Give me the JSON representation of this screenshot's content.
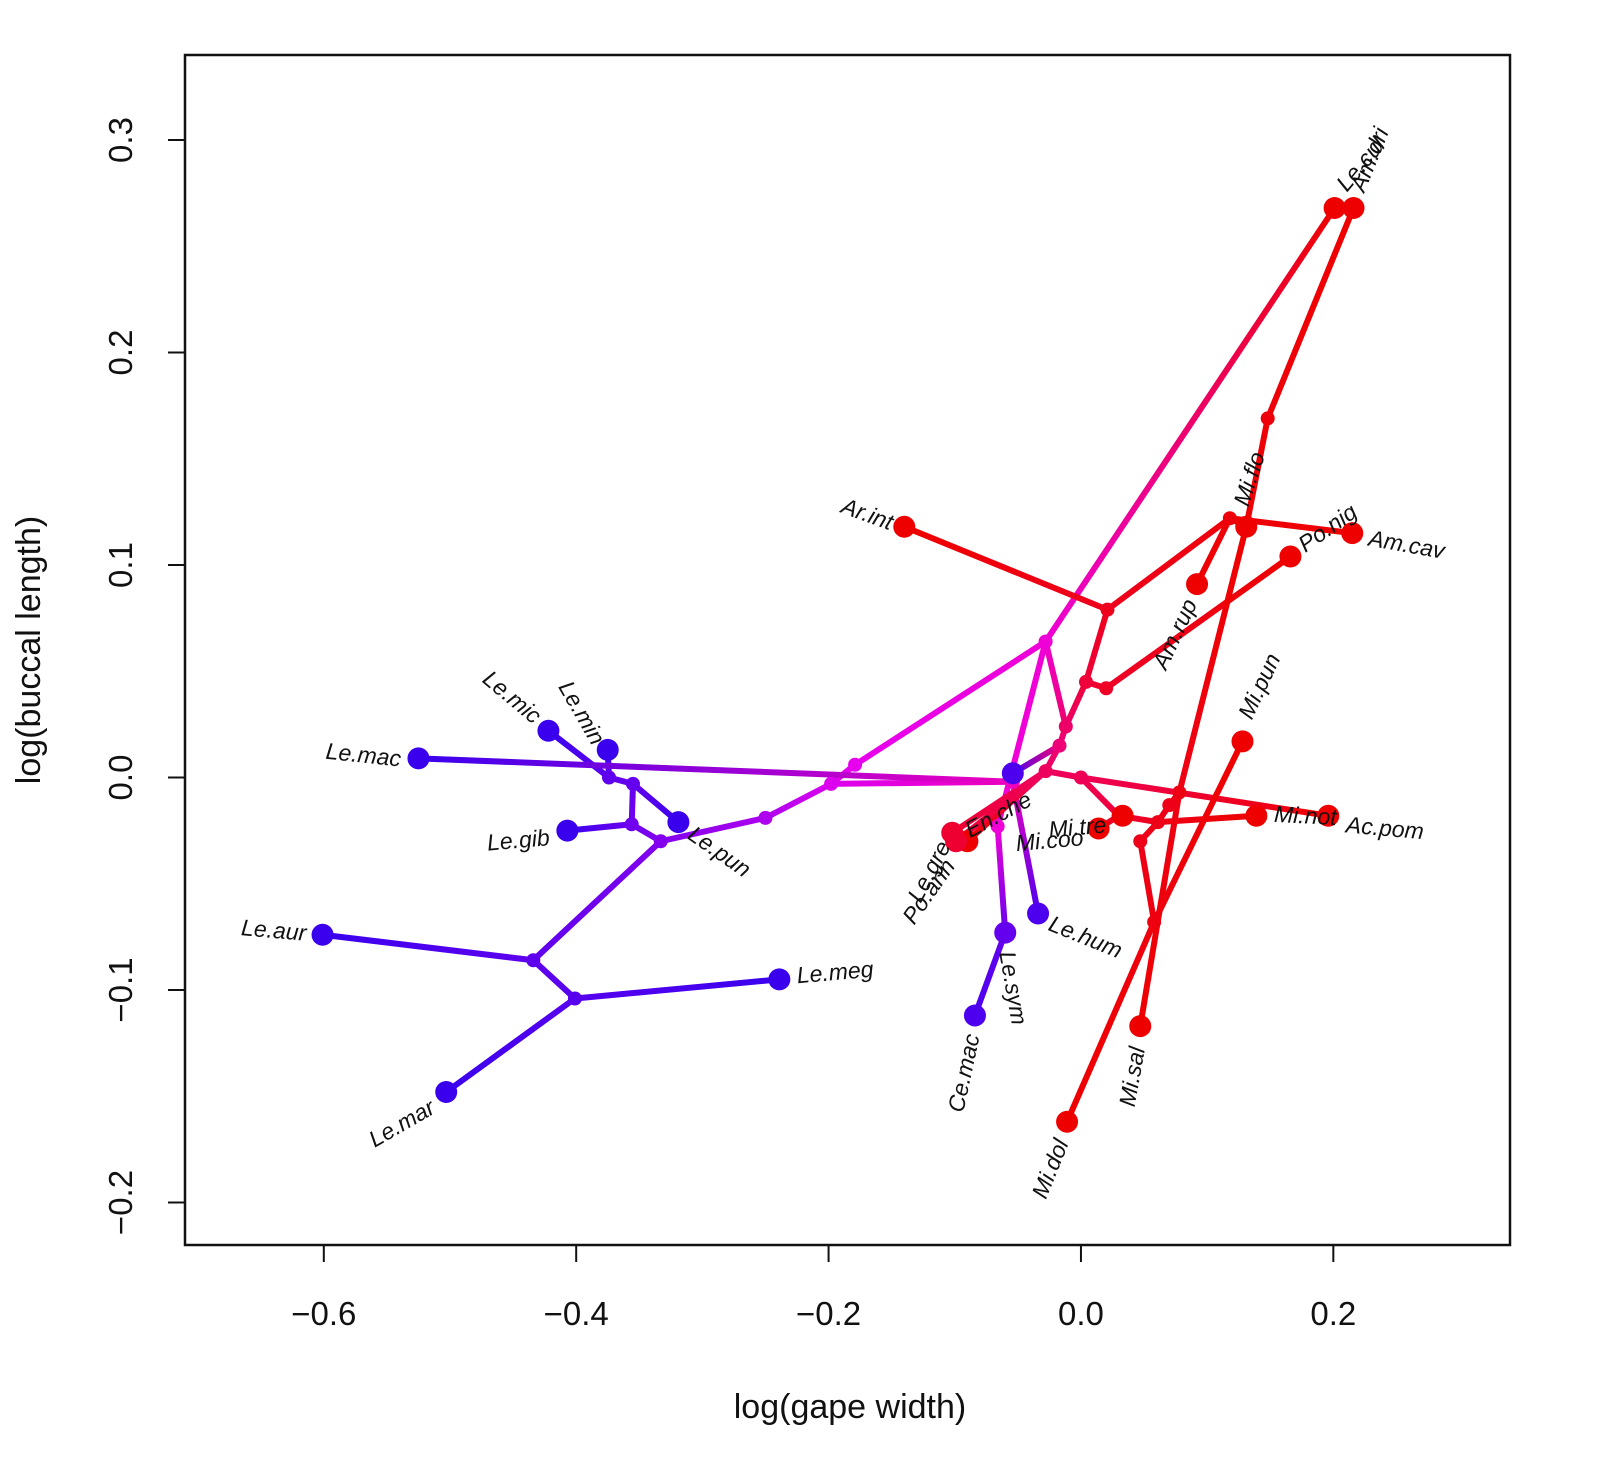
{
  "chart_data": {
    "type": "scatter",
    "subtype": "phylomorphospace",
    "xlabel": "log(gape width)",
    "ylabel": "log(buccal length)",
    "xlim": [
      -0.71,
      0.34
    ],
    "ylim": [
      -0.22,
      0.34
    ],
    "xticks": [
      -0.6,
      -0.4,
      -0.2,
      0.0,
      0.2
    ],
    "yticks": [
      -0.2,
      -0.1,
      0.0,
      0.1,
      0.2,
      0.3
    ],
    "xtick_labels": [
      "−0.6",
      "−0.4",
      "−0.2",
      "0.0",
      "0.2"
    ],
    "ytick_labels": [
      "−0.2",
      "−0.1",
      "0.0",
      "0.1",
      "0.2",
      "0.3"
    ],
    "grid": false,
    "color_scale": {
      "low": "#3a00ee",
      "mid": "#ee00ee",
      "high": "#ee0000"
    },
    "nodes": {
      "root": {
        "x": -0.028,
        "y": 0.064,
        "v": 0.55
      },
      "b1": {
        "x": -0.179,
        "y": 0.006,
        "v": 0.48
      },
      "b2": {
        "x": -0.198,
        "y": -0.003,
        "v": 0.45
      },
      "b3": {
        "x": -0.25,
        "y": -0.019,
        "v": 0.32
      },
      "b4": {
        "x": -0.333,
        "y": -0.03,
        "v": 0.2
      },
      "b5": {
        "x": -0.356,
        "y": -0.022,
        "v": 0.15
      },
      "b6": {
        "x": -0.355,
        "y": -0.003,
        "v": 0.12
      },
      "b7": {
        "x": -0.374,
        "y": 0.0,
        "v": 0.1
      },
      "b8": {
        "x": -0.434,
        "y": -0.086,
        "v": 0.1
      },
      "b9": {
        "x": -0.401,
        "y": -0.104,
        "v": 0.08
      },
      "c1": {
        "x": -0.054,
        "y": -0.002,
        "v": 0.6
      },
      "c2": {
        "x": -0.066,
        "y": -0.023,
        "v": 0.55
      },
      "r1": {
        "x": -0.012,
        "y": 0.024,
        "v": 0.78
      },
      "r2": {
        "x": -0.017,
        "y": 0.015,
        "v": 0.75
      },
      "r3": {
        "x": 0.004,
        "y": 0.045,
        "v": 0.88
      },
      "r4": {
        "x": 0.02,
        "y": 0.042,
        "v": 0.92
      },
      "r5": {
        "x": 0.021,
        "y": 0.079,
        "v": 0.94
      },
      "r6": {
        "x": 0.118,
        "y": 0.122,
        "v": 0.98
      },
      "r7": {
        "x": 0.148,
        "y": 0.169,
        "v": 0.98
      },
      "r8": {
        "x": -0.028,
        "y": 0.003,
        "v": 0.8
      },
      "r9": {
        "x": 0.0,
        "y": 0.0,
        "v": 0.82
      },
      "r10": {
        "x": 0.03,
        "y": -0.018,
        "v": 0.88
      },
      "r11": {
        "x": 0.061,
        "y": -0.021,
        "v": 0.95
      },
      "r12": {
        "x": 0.07,
        "y": -0.013,
        "v": 0.95
      },
      "r13": {
        "x": 0.078,
        "y": -0.007,
        "v": 0.96
      },
      "r14": {
        "x": 0.047,
        "y": -0.03,
        "v": 0.95
      },
      "r15": {
        "x": 0.058,
        "y": -0.068,
        "v": 0.97
      }
    },
    "tips": [
      {
        "name": "Le.mac",
        "x": -0.525,
        "y": 0.009,
        "v": 0.0,
        "lx": -0.539,
        "ly": 0.008,
        "anchor": "end",
        "rot": 6
      },
      {
        "name": "Le.mic",
        "x": -0.422,
        "y": 0.022,
        "v": 0.0,
        "lx": -0.431,
        "ly": 0.027,
        "anchor": "end",
        "rot": 40
      },
      {
        "name": "Le.min",
        "x": -0.375,
        "y": 0.013,
        "v": 0.0,
        "lx": -0.383,
        "ly": 0.016,
        "anchor": "end",
        "rot": 60
      },
      {
        "name": "Le.gib",
        "x": -0.407,
        "y": -0.025,
        "v": 0.0,
        "lx": -0.421,
        "ly": -0.029,
        "anchor": "end",
        "rot": -5
      },
      {
        "name": "Le.pun",
        "x": -0.319,
        "y": -0.021,
        "v": 0.0,
        "lx": -0.31,
        "ly": -0.026,
        "anchor": "start",
        "rot": 35
      },
      {
        "name": "Le.aur",
        "x": -0.601,
        "y": -0.074,
        "v": 0.0,
        "lx": -0.614,
        "ly": -0.074,
        "anchor": "end",
        "rot": 5
      },
      {
        "name": "Le.mar",
        "x": -0.503,
        "y": -0.148,
        "v": 0.0,
        "lx": -0.513,
        "ly": -0.155,
        "anchor": "end",
        "rot": -30
      },
      {
        "name": "Le.meg",
        "x": -0.239,
        "y": -0.095,
        "v": 0.0,
        "lx": -0.225,
        "ly": -0.094,
        "anchor": "start",
        "rot": -5
      },
      {
        "name": "Le.hum",
        "x": -0.034,
        "y": -0.064,
        "v": 0.05,
        "lx": -0.025,
        "ly": -0.069,
        "anchor": "start",
        "rot": 22
      },
      {
        "name": "Le.sym",
        "x": -0.06,
        "y": -0.073,
        "v": 0.12,
        "lx": -0.06,
        "ly": -0.082,
        "anchor": "start",
        "rot": 80
      },
      {
        "name": "Ce.mac",
        "x": -0.084,
        "y": -0.112,
        "v": 0.05,
        "lx": -0.085,
        "ly": -0.121,
        "anchor": "end",
        "rot": -78
      },
      {
        "name": "Ar.int",
        "x": -0.14,
        "y": 0.118,
        "v": 1.0,
        "lx": -0.15,
        "ly": 0.119,
        "anchor": "end",
        "rot": 20
      },
      {
        "name": "Le.cul",
        "x": 0.201,
        "y": 0.268,
        "v": 1.0,
        "lx": 0.207,
        "ly": 0.277,
        "anchor": "start",
        "rot": -50
      },
      {
        "name": "Am.dri",
        "x": 0.216,
        "y": 0.268,
        "v": 1.0,
        "lx": 0.22,
        "ly": 0.276,
        "anchor": "start",
        "rot": -68
      },
      {
        "name": "Mi.flo",
        "x": 0.131,
        "y": 0.118,
        "v": 1.0,
        "lx": 0.128,
        "ly": 0.128,
        "anchor": "start",
        "rot": -72
      },
      {
        "name": "Po.nig",
        "x": 0.166,
        "y": 0.104,
        "v": 1.0,
        "lx": 0.175,
        "ly": 0.108,
        "anchor": "start",
        "rot": -35
      },
      {
        "name": "Am.cav",
        "x": 0.215,
        "y": 0.115,
        "v": 1.0,
        "lx": 0.228,
        "ly": 0.112,
        "anchor": "start",
        "rot": 10
      },
      {
        "name": "Am.rup",
        "x": 0.092,
        "y": 0.091,
        "v": 1.0,
        "lx": 0.088,
        "ly": 0.083,
        "anchor": "end",
        "rot": -65
      },
      {
        "name": "Mi.pun",
        "x": 0.128,
        "y": 0.017,
        "v": 1.0,
        "lx": 0.131,
        "ly": 0.028,
        "anchor": "start",
        "rot": -65
      },
      {
        "name": "Mi.not",
        "x": 0.139,
        "y": -0.018,
        "v": 1.0,
        "lx": 0.153,
        "ly": -0.018,
        "anchor": "start",
        "rot": 3
      },
      {
        "name": "Ac.pom",
        "x": 0.196,
        "y": -0.018,
        "v": 1.0,
        "lx": 0.21,
        "ly": -0.023,
        "anchor": "start",
        "rot": 5
      },
      {
        "name": "Mi.tre",
        "x": 0.033,
        "y": -0.018,
        "v": 1.0,
        "lx": 0.02,
        "ly": -0.023,
        "anchor": "end",
        "rot": -5
      },
      {
        "name": "Mi.coo",
        "x": 0.014,
        "y": -0.024,
        "v": 1.0,
        "lx": 0.002,
        "ly": -0.029,
        "anchor": "end",
        "rot": -5
      },
      {
        "name": "En.che",
        "x": -0.09,
        "y": -0.03,
        "v": 1.0,
        "lx": -0.09,
        "ly": -0.026,
        "anchor": "start",
        "rot": -28
      },
      {
        "name": "Le.gre",
        "x": -0.102,
        "y": -0.026,
        "v": 0.9,
        "lx": -0.107,
        "ly": -0.031,
        "anchor": "end",
        "rot": -62
      },
      {
        "name": "Po.ann",
        "x": -0.099,
        "y": -0.03,
        "v": 0.9,
        "lx": -0.103,
        "ly": -0.04,
        "anchor": "end",
        "rot": -55
      },
      {
        "name": "Mi.sal",
        "x": 0.047,
        "y": -0.117,
        "v": 1.0,
        "lx": 0.046,
        "ly": -0.127,
        "anchor": "end",
        "rot": -80
      },
      {
        "name": "Mi.dol",
        "x": -0.011,
        "y": -0.162,
        "v": 1.0,
        "lx": -0.014,
        "ly": -0.171,
        "anchor": "end",
        "rot": -68
      },
      {
        "name": "",
        "x": -0.054,
        "y": 0.002,
        "v": 0.05,
        "lx": -0.054,
        "ly": 0.002,
        "anchor": "start",
        "rot": 0
      }
    ],
    "edges": [
      [
        "root",
        "b1"
      ],
      [
        "b1",
        "b2"
      ],
      [
        "b2",
        "b3"
      ],
      [
        "b3",
        "b4"
      ],
      [
        "b4",
        "b5"
      ],
      [
        "b5",
        "b6"
      ],
      [
        "b6",
        "b7"
      ],
      [
        "b7",
        "Le.mic"
      ],
      [
        "b7",
        "Le.min"
      ],
      [
        "b6",
        "Le.pun"
      ],
      [
        "b5",
        "Le.gib"
      ],
      [
        "b4",
        "b8"
      ],
      [
        "b8",
        "Le.aur"
      ],
      [
        "b8",
        "b9"
      ],
      [
        "b9",
        "Le.mar"
      ],
      [
        "b9",
        "Le.meg"
      ],
      [
        "b2",
        "c1"
      ],
      [
        "c1",
        "Le.mac"
      ],
      [
        "c1",
        "Le.hum"
      ],
      [
        "root",
        "c2"
      ],
      [
        "c2",
        "Le.sym"
      ],
      [
        "Le.sym",
        "Ce.mac"
      ],
      [
        "root",
        "Le.cul"
      ],
      [
        "root",
        "r1"
      ],
      [
        "r1",
        "r2"
      ],
      [
        "r2",
        ""
      ],
      [
        "r1",
        "r3"
      ],
      [
        "r3",
        "r4"
      ],
      [
        "r4",
        "Po.nig"
      ],
      [
        "r3",
        "r5"
      ],
      [
        "r5",
        "Ar.int"
      ],
      [
        "r5",
        "r6"
      ],
      [
        "r6",
        "Mi.flo"
      ],
      [
        "r6",
        "Am.cav"
      ],
      [
        "r6",
        "Am.rup"
      ],
      [
        "Mi.flo",
        "r7"
      ],
      [
        "r7",
        "Am.dri"
      ],
      [
        "r2",
        "r8"
      ],
      [
        "r8",
        "En.che"
      ],
      [
        "r8",
        "Le.gre"
      ],
      [
        "r8",
        "Po.ann"
      ],
      [
        "r8",
        "r9"
      ],
      [
        "r9",
        "Ac.pom"
      ],
      [
        "r9",
        "r10"
      ],
      [
        "r10",
        "Mi.tre"
      ],
      [
        "r10",
        "Mi.coo"
      ],
      [
        "r10",
        "r11"
      ],
      [
        "r11",
        "Mi.not"
      ],
      [
        "r11",
        "r12"
      ],
      [
        "r12",
        "r13"
      ],
      [
        "r13",
        "Mi.sal"
      ],
      [
        "r13",
        "Mi.flo"
      ],
      [
        "r11",
        "r14"
      ],
      [
        "r14",
        "r15"
      ],
      [
        "r15",
        "Mi.dol"
      ],
      [
        "r15",
        "Mi.pun"
      ]
    ]
  }
}
